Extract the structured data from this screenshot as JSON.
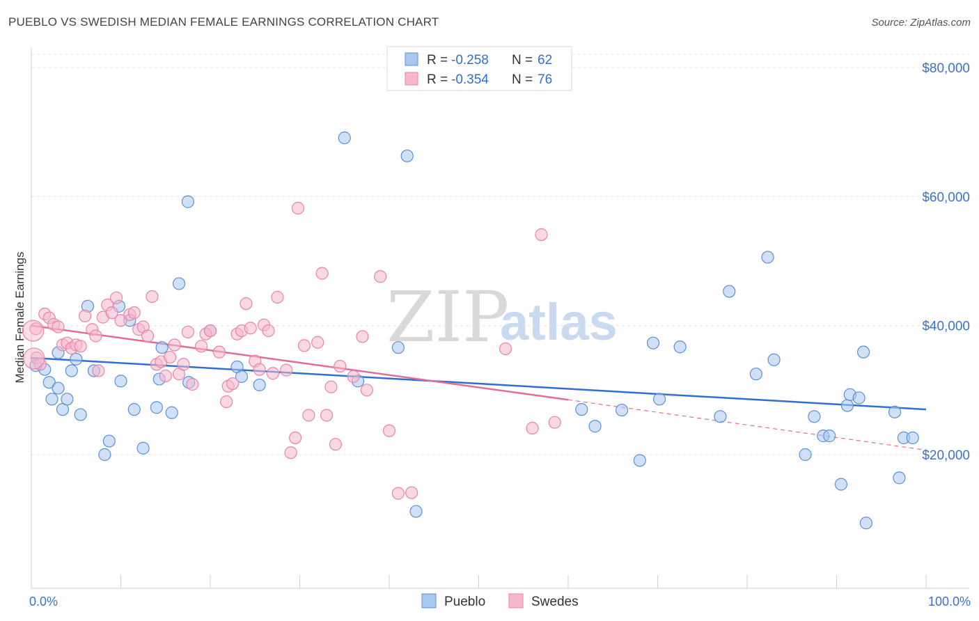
{
  "title": "PUEBLO VS SWEDISH MEDIAN FEMALE EARNINGS CORRELATION CHART",
  "source": "Source: ZipAtlas.com",
  "watermark": {
    "zip": "ZIP",
    "atlas": "atlas"
  },
  "legend": {
    "r_label": "R =",
    "n_label": "N =",
    "items": [
      {
        "r": "-0.258",
        "n": "62",
        "color": "#a9c8f0"
      },
      {
        "r": "-0.354",
        "n": "76",
        "color": "#f6b8cc"
      }
    ]
  },
  "chart_data": {
    "type": "scatter",
    "title": "PUEBLO VS SWEDISH MEDIAN FEMALE EARNINGS CORRELATION CHART",
    "xlabel": "",
    "ylabel": "Median Female Earnings",
    "xlim": [
      0,
      100
    ],
    "ylim": [
      0,
      82000
    ],
    "x_tick_labels": [
      "0.0%",
      "100.0%"
    ],
    "y_ticks": [
      {
        "value": 20000,
        "label": "$20,000"
      },
      {
        "value": 40000,
        "label": "$40,000"
      },
      {
        "value": 60000,
        "label": "$60,000"
      },
      {
        "value": 80000,
        "label": "$80,000"
      }
    ],
    "grid": true,
    "legend_position": "top-center",
    "series": [
      {
        "name": "Pueblo",
        "color": "#a9c8f0",
        "stroke": "#5b8fd6",
        "trend_color": "#2f6fd0",
        "trend": {
          "x": [
            0,
            100
          ],
          "y": [
            35000,
            27000
          ]
        },
        "points": [
          [
            0.5,
            33800
          ],
          [
            1.5,
            33200
          ],
          [
            2,
            31200
          ],
          [
            2.3,
            28600
          ],
          [
            3,
            30300
          ],
          [
            3.5,
            27000
          ],
          [
            4,
            28600
          ],
          [
            4.5,
            33000
          ],
          [
            3,
            35800
          ],
          [
            5,
            34800
          ],
          [
            5.5,
            26200
          ],
          [
            6.3,
            43000
          ],
          [
            7,
            33000
          ],
          [
            8.2,
            20000
          ],
          [
            8.7,
            22100
          ],
          [
            10,
            31400
          ],
          [
            9.8,
            43000
          ],
          [
            11,
            40800
          ],
          [
            11.5,
            27000
          ],
          [
            12.5,
            21000
          ],
          [
            14,
            27300
          ],
          [
            14.3,
            31700
          ],
          [
            14.6,
            36600
          ],
          [
            15.7,
            26500
          ],
          [
            16.5,
            46500
          ],
          [
            17.5,
            59200
          ],
          [
            17.6,
            31200
          ],
          [
            20,
            39200
          ],
          [
            23,
            33600
          ],
          [
            23.5,
            32100
          ],
          [
            25.5,
            30800
          ],
          [
            35,
            69100
          ],
          [
            36.5,
            31400
          ],
          [
            41,
            36600
          ],
          [
            42,
            66300
          ],
          [
            43,
            11200
          ],
          [
            61.5,
            27000
          ],
          [
            63,
            24400
          ],
          [
            66,
            26900
          ],
          [
            68,
            19100
          ],
          [
            69.5,
            37300
          ],
          [
            70.2,
            28600
          ],
          [
            72.5,
            36700
          ],
          [
            77,
            25900
          ],
          [
            78,
            45300
          ],
          [
            81,
            32500
          ],
          [
            82.3,
            50600
          ],
          [
            83,
            34700
          ],
          [
            86.5,
            20000
          ],
          [
            87.5,
            25900
          ],
          [
            88.5,
            22900
          ],
          [
            89.2,
            22900
          ],
          [
            90.5,
            15400
          ],
          [
            91.2,
            27600
          ],
          [
            91.5,
            29300
          ],
          [
            92.5,
            28800
          ],
          [
            93,
            35900
          ],
          [
            93.3,
            9400
          ],
          [
            97,
            16400
          ],
          [
            97.5,
            22600
          ],
          [
            98.5,
            22600
          ],
          [
            96.5,
            26600
          ]
        ]
      },
      {
        "name": "Swedes",
        "color": "#f6b8cc",
        "stroke": "#e884a6",
        "trend_color": "#e26d96",
        "trend": {
          "x": [
            0,
            60
          ],
          "y": [
            40000,
            28500
          ]
        },
        "trend_dashed": {
          "x": [
            60,
            100
          ],
          "y": [
            28500,
            20700
          ]
        },
        "points": [
          [
            0.5,
            39500
          ],
          [
            0.6,
            35000
          ],
          [
            1,
            34000
          ],
          [
            1.5,
            41800
          ],
          [
            2,
            41200
          ],
          [
            2.5,
            40200
          ],
          [
            3,
            39800
          ],
          [
            3.5,
            37000
          ],
          [
            4,
            37300
          ],
          [
            4.5,
            36500
          ],
          [
            5,
            37000
          ],
          [
            5.5,
            36800
          ],
          [
            6,
            41500
          ],
          [
            6.8,
            39400
          ],
          [
            7.2,
            38400
          ],
          [
            7.5,
            33000
          ],
          [
            8,
            41300
          ],
          [
            8.5,
            43200
          ],
          [
            9,
            42000
          ],
          [
            9.5,
            44300
          ],
          [
            10,
            40800
          ],
          [
            11,
            41700
          ],
          [
            11.5,
            42000
          ],
          [
            12,
            39400
          ],
          [
            12.5,
            39800
          ],
          [
            13,
            38400
          ],
          [
            13.5,
            44500
          ],
          [
            14,
            34000
          ],
          [
            14.5,
            34400
          ],
          [
            15,
            32200
          ],
          [
            15.5,
            35100
          ],
          [
            16,
            37000
          ],
          [
            16.5,
            32500
          ],
          [
            17,
            34000
          ],
          [
            17.5,
            39000
          ],
          [
            18,
            30900
          ],
          [
            19,
            36800
          ],
          [
            19.5,
            38700
          ],
          [
            20,
            39200
          ],
          [
            21,
            35900
          ],
          [
            21.8,
            28200
          ],
          [
            22,
            30600
          ],
          [
            22.5,
            31000
          ],
          [
            23,
            38700
          ],
          [
            23.5,
            39200
          ],
          [
            24,
            43400
          ],
          [
            24.5,
            39600
          ],
          [
            25,
            34500
          ],
          [
            25.5,
            33200
          ],
          [
            26,
            40100
          ],
          [
            26.5,
            39200
          ],
          [
            27,
            32600
          ],
          [
            27.5,
            44400
          ],
          [
            28.5,
            33100
          ],
          [
            29,
            20300
          ],
          [
            29.5,
            22600
          ],
          [
            29.8,
            58200
          ],
          [
            30.5,
            36900
          ],
          [
            31,
            26100
          ],
          [
            32,
            37400
          ],
          [
            32.5,
            48100
          ],
          [
            33,
            26100
          ],
          [
            33.5,
            30500
          ],
          [
            34,
            21600
          ],
          [
            34.5,
            33700
          ],
          [
            36,
            32100
          ],
          [
            37,
            38300
          ],
          [
            37.5,
            30000
          ],
          [
            39,
            47600
          ],
          [
            40,
            23700
          ],
          [
            41,
            14000
          ],
          [
            42.5,
            14100
          ],
          [
            53,
            36400
          ],
          [
            56,
            24100
          ],
          [
            57,
            54100
          ],
          [
            58.5,
            25000
          ]
        ]
      }
    ]
  }
}
